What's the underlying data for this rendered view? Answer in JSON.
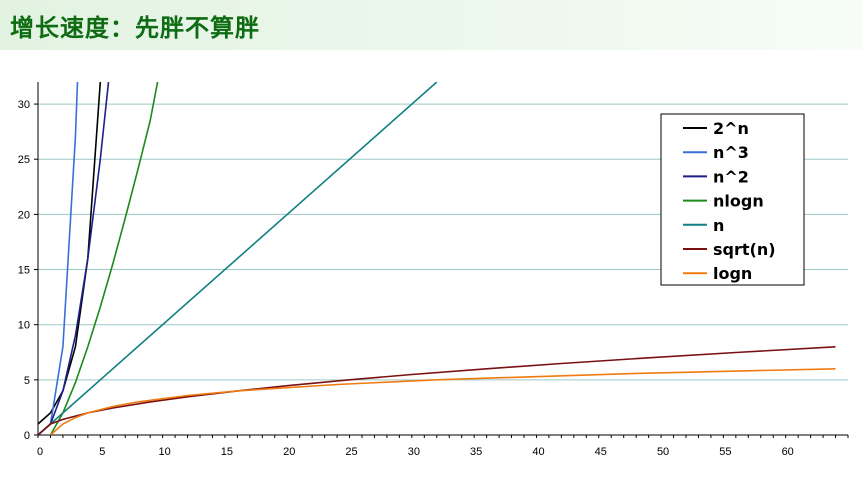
{
  "header": {
    "title": "增长速度：先胖不算胖"
  },
  "chart_data": {
    "type": "line",
    "title": "",
    "xlabel": "",
    "ylabel": "",
    "xlim": [
      0,
      65
    ],
    "ylim": [
      0,
      32
    ],
    "xticks": [
      0,
      5,
      10,
      15,
      20,
      25,
      30,
      35,
      40,
      45,
      50,
      55,
      60
    ],
    "yticks": [
      0,
      5,
      10,
      15,
      20,
      25,
      30
    ],
    "grid": "horizontal",
    "legend_position": "top-right",
    "series": [
      {
        "name": "2^n",
        "color": "#000000",
        "x": [
          0,
          1,
          2,
          3,
          4,
          5
        ],
        "y": [
          1,
          2,
          4,
          8,
          16,
          32
        ]
      },
      {
        "name": "n^3",
        "color": "#3a6fd8",
        "x": [
          0,
          1,
          2,
          3,
          3.17
        ],
        "y": [
          0,
          1,
          8,
          27,
          32
        ]
      },
      {
        "name": "n^2",
        "color": "#1f1f8a",
        "x": [
          0,
          1,
          2,
          3,
          4,
          5,
          5.66
        ],
        "y": [
          0,
          1,
          4,
          9,
          16,
          25,
          32
        ]
      },
      {
        "name": "nlogn",
        "color": "#1a8a1a",
        "x": [
          1,
          2,
          3,
          4,
          5,
          6,
          7,
          8,
          9,
          9.6
        ],
        "y": [
          0,
          2,
          4.75,
          8,
          11.6,
          15.5,
          19.65,
          24,
          28.5,
          32
        ]
      },
      {
        "name": "n",
        "color": "#108080",
        "x": [
          0,
          32
        ],
        "y": [
          0,
          32
        ]
      },
      {
        "name": "sqrt(n)",
        "color": "#7a1010",
        "x": [
          0,
          1,
          2,
          4,
          6,
          9,
          12,
          16,
          20,
          25,
          30,
          36,
          42,
          49,
          56,
          64
        ],
        "y": [
          0,
          1,
          1.41,
          2,
          2.45,
          3,
          3.46,
          4,
          4.47,
          5,
          5.48,
          6,
          6.48,
          7,
          7.48,
          8
        ]
      },
      {
        "name": "logn",
        "color": "#f07a10",
        "x": [
          1,
          2,
          3,
          4,
          6,
          8,
          12,
          16,
          24,
          32,
          48,
          64
        ],
        "y": [
          0,
          1,
          1.58,
          2,
          2.58,
          3,
          3.58,
          4,
          4.58,
          5,
          5.58,
          6
        ]
      }
    ]
  }
}
